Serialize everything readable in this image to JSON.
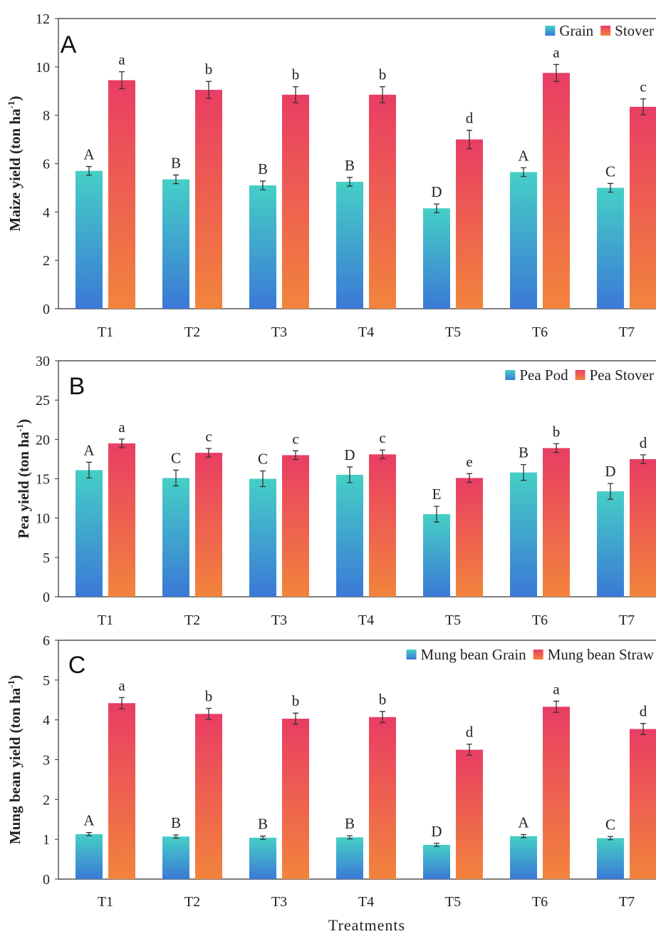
{
  "xlabel": "Treatments",
  "chart_data": [
    {
      "type": "bar",
      "panel": "A",
      "ylabel": "Maize yield (ton ha",
      "ylabel_sup": "-1",
      "ylabel_close": ")",
      "ylim": [
        0,
        12
      ],
      "yticks": [
        0,
        2,
        4,
        6,
        8,
        10,
        12
      ],
      "categories": [
        "T1",
        "T2",
        "T3",
        "T4",
        "T5",
        "T6",
        "T7"
      ],
      "legend_position": "top-right",
      "grid": false,
      "series": [
        {
          "name": "Grain",
          "values": [
            5.7,
            5.35,
            5.1,
            5.25,
            4.15,
            5.65,
            5.0
          ],
          "errors": [
            0.18,
            0.18,
            0.18,
            0.18,
            0.18,
            0.18,
            0.18
          ],
          "labels": [
            "A",
            "B",
            "B",
            "B",
            "D",
            "A",
            "C"
          ],
          "color_top": "#45cfc6",
          "color_bottom": "#3b79d6"
        },
        {
          "name": "Stover",
          "values": [
            9.45,
            9.05,
            8.85,
            8.85,
            7.0,
            9.75,
            8.35
          ],
          "errors": [
            0.35,
            0.35,
            0.33,
            0.33,
            0.38,
            0.35,
            0.33
          ],
          "labels": [
            "a",
            "b",
            "b",
            "b",
            "d",
            "a",
            "c"
          ],
          "color_top": "#e93d64",
          "color_bottom": "#f2843c"
        }
      ]
    },
    {
      "type": "bar",
      "panel": "B",
      "ylabel": "Pea yield (ton ha",
      "ylabel_sup": "-1",
      "ylabel_close": ")",
      "ylim": [
        0,
        30
      ],
      "yticks": [
        0,
        5,
        10,
        15,
        20,
        25,
        30
      ],
      "categories": [
        "T1",
        "T2",
        "T3",
        "T4",
        "T5",
        "T6",
        "T7"
      ],
      "legend_position": "top-right",
      "grid": false,
      "series": [
        {
          "name": "Pea Pod",
          "values": [
            16.1,
            15.1,
            15.0,
            15.5,
            10.5,
            15.8,
            13.4
          ],
          "errors": [
            1.0,
            1.0,
            1.0,
            1.0,
            1.0,
            1.0,
            1.0
          ],
          "labels": [
            "A",
            "C",
            "C",
            "D",
            "E",
            "B",
            "D"
          ],
          "color_top": "#45cfc6",
          "color_bottom": "#3b79d6"
        },
        {
          "name": "Pea Stover",
          "values": [
            19.5,
            18.3,
            18.0,
            18.1,
            15.1,
            18.9,
            17.5
          ],
          "errors": [
            0.55,
            0.55,
            0.55,
            0.55,
            0.55,
            0.55,
            0.55
          ],
          "labels": [
            "a",
            "c",
            "c",
            "c",
            "e",
            "b",
            "d"
          ],
          "color_top": "#e93d64",
          "color_bottom": "#f2843c"
        }
      ]
    },
    {
      "type": "bar",
      "panel": "C",
      "ylabel": "Mung bean yield (ton ha",
      "ylabel_sup": "-1",
      "ylabel_close": ")",
      "ylim": [
        0,
        6
      ],
      "yticks": [
        0,
        1,
        2,
        3,
        4,
        5,
        6
      ],
      "categories": [
        "T1",
        "T2",
        "T3",
        "T4",
        "T5",
        "T6",
        "T7"
      ],
      "legend_position": "top-right",
      "grid": false,
      "series": [
        {
          "name": "Mung bean Grain",
          "values": [
            1.13,
            1.07,
            1.04,
            1.05,
            0.86,
            1.08,
            1.03
          ],
          "errors": [
            0.04,
            0.04,
            0.04,
            0.04,
            0.04,
            0.04,
            0.04
          ],
          "labels": [
            "A",
            "B",
            "B",
            "B",
            "D",
            "A",
            "C"
          ],
          "color_top": "#45cfc6",
          "color_bottom": "#3b79d6"
        },
        {
          "name": "Mung bean Straw",
          "values": [
            4.42,
            4.15,
            4.03,
            4.07,
            3.25,
            4.33,
            3.77
          ],
          "errors": [
            0.14,
            0.14,
            0.14,
            0.14,
            0.14,
            0.14,
            0.14
          ],
          "labels": [
            "a",
            "b",
            "b",
            "b",
            "d",
            "a",
            "d"
          ],
          "color_top": "#e93d64",
          "color_bottom": "#f2843c"
        }
      ]
    }
  ]
}
